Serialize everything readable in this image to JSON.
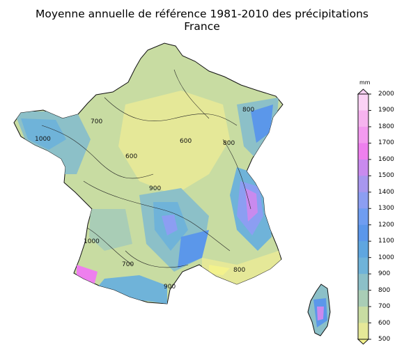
{
  "title": {
    "line1": "Moyenne annuelle de référence 1981-2010 des précipitations",
    "line2": "France"
  },
  "legend": {
    "unit": "mm",
    "levels": [
      {
        "value": "2000",
        "color": "#fbd2f5"
      },
      {
        "value": "1900",
        "color": "#f6b3ef"
      },
      {
        "value": "1800",
        "color": "#f39aef"
      },
      {
        "value": "1700",
        "color": "#ee7fee"
      },
      {
        "value": "1600",
        "color": "#c98aee"
      },
      {
        "value": "1500",
        "color": "#a897ee"
      },
      {
        "value": "1400",
        "color": "#8c9ef2"
      },
      {
        "value": "1300",
        "color": "#6f9df1"
      },
      {
        "value": "1200",
        "color": "#5b97ea"
      },
      {
        "value": "1100",
        "color": "#5fa6e0"
      },
      {
        "value": "1000",
        "color": "#6fb3d9"
      },
      {
        "value": "900",
        "color": "#8cc0c8"
      },
      {
        "value": "800",
        "color": "#a9cdb6"
      },
      {
        "value": "700",
        "color": "#c8dca2"
      },
      {
        "value": "600",
        "color": "#e5e898"
      },
      {
        "value": "500",
        "color": "#f3f28c"
      }
    ]
  },
  "contour_labels": [
    "1000",
    "900",
    "800",
    "700",
    "600"
  ]
}
